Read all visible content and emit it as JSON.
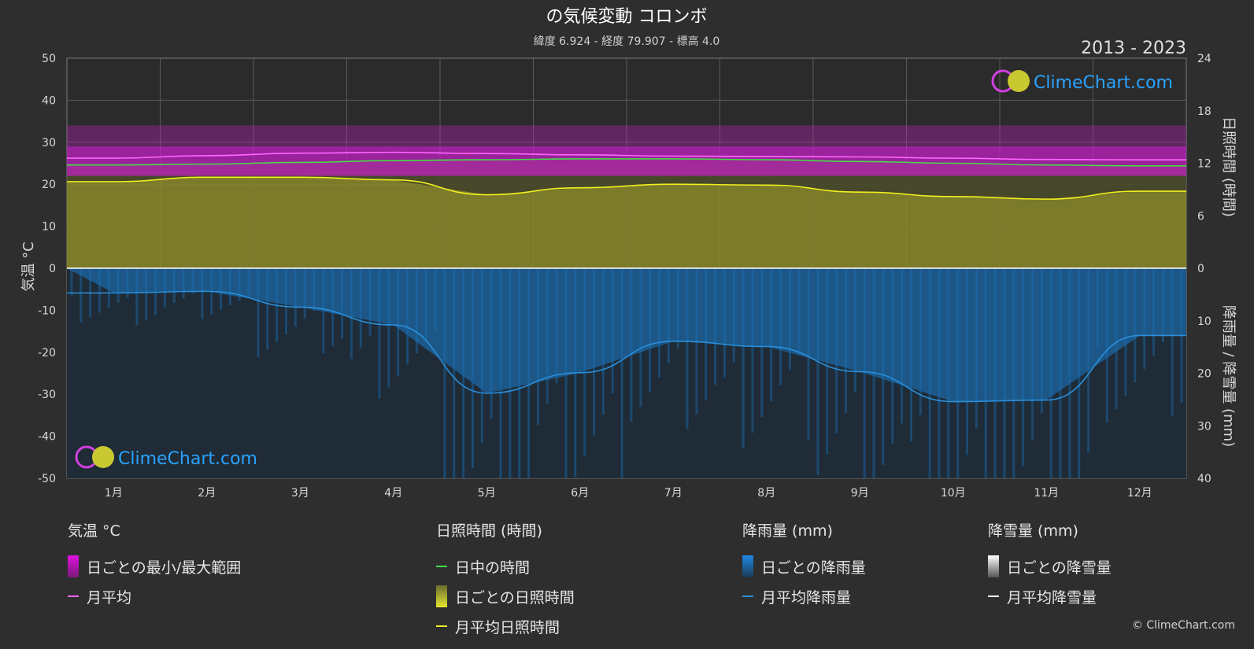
{
  "header": {
    "title": "の気候変動 コロンボ",
    "subtitle": "緯度 6.924 - 経度 79.907 - 標高 4.0",
    "year_range": "2013 - 2023"
  },
  "logo": {
    "text": "ClimeChart.com"
  },
  "copyright": "© ClimeChart.com",
  "chart_data": {
    "type": "line",
    "title": "の気候変動 コロンボ",
    "categories": [
      "1月",
      "2月",
      "3月",
      "4月",
      "5月",
      "6月",
      "7月",
      "8月",
      "9月",
      "10月",
      "11月",
      "12月"
    ],
    "axes": {
      "left": {
        "label": "気温 °C",
        "min": -50,
        "max": 50,
        "ticks": [
          50,
          40,
          30,
          20,
          10,
          0,
          -10,
          -20,
          -30,
          -40,
          -50
        ]
      },
      "right_top": {
        "label": "日照時間 (時間)",
        "min": 0,
        "max": 24,
        "ticks": [
          24,
          18,
          12,
          6,
          0
        ]
      },
      "right_bottom": {
        "label": "降雨量 / 降雪量 (mm)",
        "min": 0,
        "max": 40,
        "ticks": [
          10,
          20,
          30,
          40
        ]
      }
    },
    "grid": true,
    "series": [
      {
        "name": "月平均",
        "axis": "temperature",
        "color": "#ff66ff",
        "values": [
          26.2,
          26.8,
          27.4,
          27.6,
          27.3,
          27.0,
          26.7,
          26.6,
          26.5,
          26.2,
          25.9,
          25.8
        ]
      },
      {
        "name": "日中の時間",
        "axis": "sunshine_hours",
        "color": "#44dd44",
        "values": [
          11.8,
          11.9,
          12.1,
          12.3,
          12.4,
          12.5,
          12.5,
          12.4,
          12.2,
          12.0,
          11.8,
          11.7
        ]
      },
      {
        "name": "月平均日照時間",
        "axis": "sunshine_hours",
        "color": "#f0f020",
        "values": [
          9.9,
          10.4,
          10.4,
          10.1,
          8.4,
          9.2,
          9.6,
          9.5,
          8.7,
          8.2,
          7.9,
          8.8
        ]
      },
      {
        "name": "月平均降雨量",
        "axis": "rain_mm",
        "color": "#2a8fdb",
        "values": [
          4.7,
          4.4,
          7.4,
          10.8,
          23.8,
          19.9,
          13.9,
          14.9,
          19.7,
          25.4,
          25.1,
          12.8
        ]
      },
      {
        "name": "月平均降雪量",
        "axis": "rain_mm",
        "color": "#ffffff",
        "values": [
          0,
          0,
          0,
          0,
          0,
          0,
          0,
          0,
          0,
          0,
          0,
          0
        ]
      }
    ],
    "daily_temperature_band": {
      "min_range": [
        22,
        24
      ],
      "max_range": [
        29,
        34
      ]
    }
  },
  "legend": {
    "temperature": {
      "title": "気温 °C",
      "band": "日ごとの最小/最大範囲",
      "mean": "月平均",
      "band_color": "#e010e0",
      "mean_color": "#ff66ff"
    },
    "sunshine": {
      "title": "日照時間 (時間)",
      "daylight": "日中の時間",
      "daily": "日ごとの日照時間",
      "mean": "月平均日照時間",
      "daylight_color": "#44dd44",
      "daily_color": "#d8d830",
      "mean_color": "#f0f020"
    },
    "rain": {
      "title": "降雨量 (mm)",
      "daily": "日ごとの降雨量",
      "mean": "月平均降雨量",
      "daily_color": "#1e88e5",
      "mean_color": "#2a8fdb"
    },
    "snow": {
      "title": "降雪量 (mm)",
      "daily": "日ごとの降雪量",
      "mean": "月平均降雪量",
      "daily_color": "#dddddd",
      "mean_color": "#ffffff"
    }
  }
}
